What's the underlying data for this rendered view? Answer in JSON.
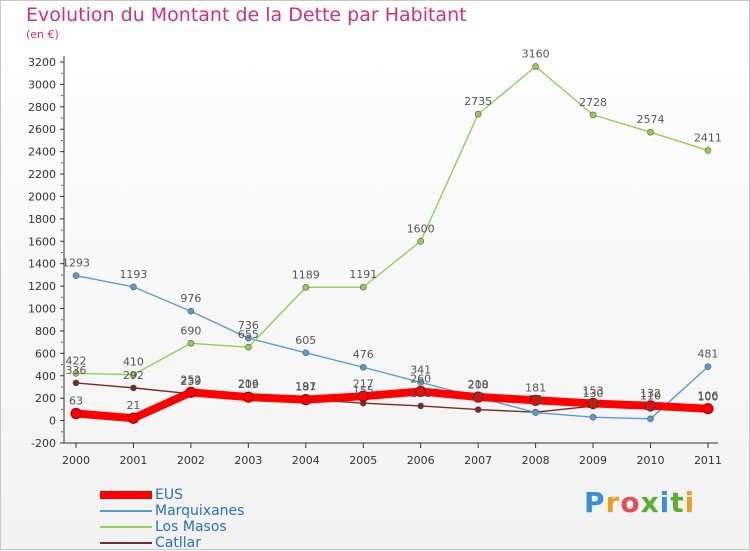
{
  "title": "Evolution du Montant de la Dette par Habitant",
  "subtitle": "(en €)",
  "logo": {
    "text": "Proxiti",
    "colors": [
      "#3a8fd8",
      "#e8a020",
      "#e05050",
      "#58b030",
      "#3a8fd8",
      "#58b030",
      "#e8a020"
    ]
  },
  "chart_data": {
    "type": "line",
    "x": [
      "2000",
      "2001",
      "2002",
      "2003",
      "2004",
      "2005",
      "2006",
      "2007",
      "2008",
      "2009",
      "2010",
      "2011"
    ],
    "ylim": [
      -200,
      3200
    ],
    "yticks": [
      -200,
      0,
      200,
      400,
      600,
      800,
      1000,
      1200,
      1400,
      1600,
      1800,
      2000,
      2200,
      2400,
      2600,
      2800,
      3000,
      3200
    ],
    "grid": false,
    "legend_placement": "bottom-left",
    "series": [
      {
        "name": "Catllar",
        "color": "#7a2a2a",
        "values": [
          336,
          292,
          239,
          216,
          191,
          155,
          131,
          98,
          75,
          130,
          110,
          100
        ]
      },
      {
        "name": "Marquixanes",
        "color": "#5b9bd5",
        "values": [
          1293,
          1193,
          976,
          736,
          605,
          476,
          341,
          208,
          72,
          30,
          16,
          481
        ]
      },
      {
        "name": "Los Masos",
        "color": "#92d050",
        "values": [
          422,
          410,
          690,
          655,
          1189,
          1191,
          1600,
          2735,
          3160,
          2728,
          2574,
          2411
        ]
      },
      {
        "name": "EUS",
        "color": "#ff0000",
        "values": [
          63,
          21,
          252,
          209,
          187,
          217,
          260,
          210,
          181,
          153,
          132,
          106
        ]
      }
    ],
    "legend": [
      "EUS",
      "Marquixanes",
      "Los Masos",
      "Catllar"
    ]
  }
}
